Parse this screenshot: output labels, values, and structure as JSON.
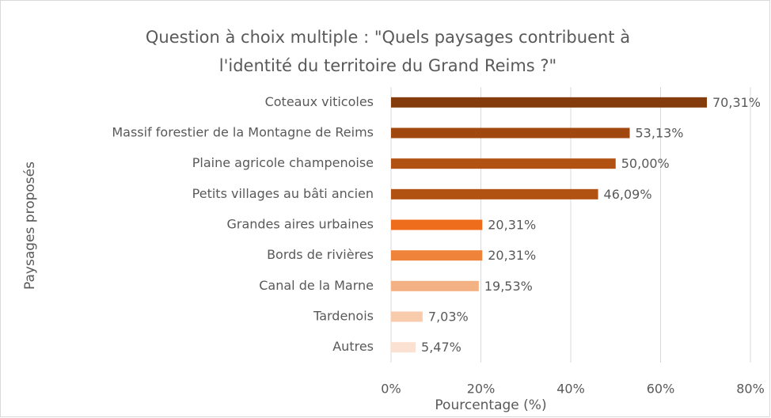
{
  "chart_data": {
    "type": "barh",
    "title": [
      "Question à choix multiple : \"Quels paysages contribuent à",
      "l'identité du territoire du Grand Reims ?\""
    ],
    "xlabel": "Pourcentage (%)",
    "ylabel": "Paysages proposés",
    "categories": [
      "Coteaux viticoles",
      "Massif forestier de la Montagne de Reims",
      "Plaine agricole champenoise",
      "Petits villages au bâti ancien",
      "Grandes aires urbaines",
      "Bords de rivières",
      "Canal de la Marne",
      "Tardenois",
      "Autres"
    ],
    "values": [
      70.31,
      53.13,
      50.0,
      46.09,
      20.31,
      20.31,
      19.53,
      7.03,
      5.47
    ],
    "value_labels": [
      "70,31%",
      "53,13%",
      "50,00%",
      "46,09%",
      "20,31%",
      "20,31%",
      "19,53%",
      "7,03%",
      "5,47%"
    ],
    "colors": [
      "#843c0c",
      "#a0480f",
      "#b25212",
      "#b25212",
      "#ee6d1d",
      "#f0833a",
      "#f4b183",
      "#f8cbad",
      "#fbe1d2"
    ],
    "xlim": [
      0,
      80
    ],
    "xticks": [
      {
        "value": 0,
        "label": "0%"
      },
      {
        "value": 20,
        "label": "20%"
      },
      {
        "value": 40,
        "label": "40%"
      },
      {
        "value": 60,
        "label": "60%"
      },
      {
        "value": 80,
        "label": "80%"
      }
    ],
    "grid": true
  }
}
